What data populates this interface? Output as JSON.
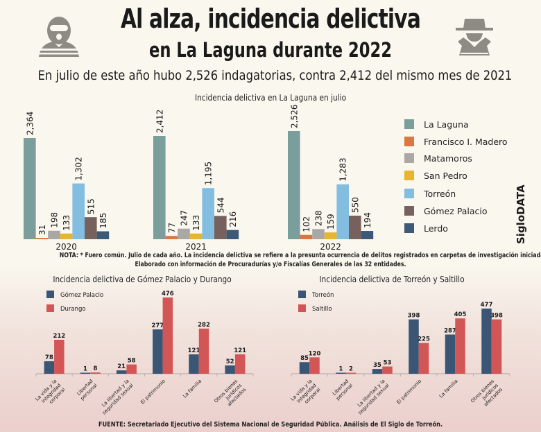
{
  "header": {
    "title_line1": "Al alza, incidencia delictiva",
    "title_line2": "en La Laguna durante 2022",
    "subtitle": "En julio de este año hubo 2,526 indagatorias, contra 2,412 del mismo mes de 2021",
    "left_icon": "masked-thief-icon",
    "right_icon": "spy-hat-icon"
  },
  "brand": "SigloDATA",
  "note_line1": "NOTA: * Fuero común. Julio de cada año. La incidencia delictiva se refiere a la presunta ocurrencia de delitos registrados en carpetas de investigación iniciadas.",
  "note_line2": "Elaborado con información de Procuradurías y/o Fiscalías Generales de las 32 entidades.",
  "source": "FUENTE: Secretariado Ejecutivo del Sistema Nacional de Seguridad Pública. Análisis de El Siglo de Torreón.",
  "colors": {
    "la_laguna": "#7a9e9b",
    "francisco_madero": "#d9783f",
    "matamoros": "#a9a8a4",
    "san_pedro": "#e8b52e",
    "torreon": "#83bde0",
    "gomez_palacio": "#76615d",
    "lerdo": "#3c5a78",
    "navy": "#3b5674",
    "red": "#d35656",
    "icon_gray": "#8c8c84"
  },
  "chart_data": [
    {
      "type": "bar",
      "title": "Incidencia delictiva en La Laguna en julio",
      "xlabel": "",
      "ylabel": "",
      "ylim": [
        0,
        2600
      ],
      "grid": false,
      "legend_position": "right",
      "categories": [
        "2020",
        "2021",
        "2022"
      ],
      "series": [
        {
          "name": "La Laguna",
          "values": [
            2364,
            2412,
            2526
          ],
          "labels": [
            "2,364",
            "2,412",
            "2,526"
          ]
        },
        {
          "name": "Francisco I. Madero",
          "values": [
            31,
            77,
            102
          ],
          "labels": [
            "31",
            "77",
            "102"
          ]
        },
        {
          "name": "Matamoros",
          "values": [
            198,
            247,
            238
          ],
          "labels": [
            "198",
            "247",
            "238"
          ]
        },
        {
          "name": "San Pedro",
          "values": [
            133,
            133,
            159
          ],
          "labels": [
            "133",
            "133",
            "159"
          ]
        },
        {
          "name": "Torreón",
          "values": [
            1302,
            1195,
            1283
          ],
          "labels": [
            "1,302",
            "1,195",
            "1,283"
          ]
        },
        {
          "name": "Gómez Palacio",
          "values": [
            515,
            544,
            550
          ],
          "labels": [
            "515",
            "544",
            "550"
          ]
        },
        {
          "name": "Lerdo",
          "values": [
            185,
            216,
            194
          ],
          "labels": [
            "185",
            "216",
            "194"
          ]
        }
      ]
    },
    {
      "type": "bar",
      "title": "Incidencia delictiva de Gómez Palacio y Durango",
      "xlabel": "",
      "ylabel": "",
      "ylim": [
        0,
        500
      ],
      "grid": false,
      "legend_position": "top-left",
      "categories": [
        "La vida y la integridad corporal",
        "Libertad personal",
        "La libertad y la seguridad sexual",
        "El patrimonio",
        "La familia",
        "Otros bienes jurídicos afectados"
      ],
      "category_lines": [
        [
          "La vida y la",
          "integridad",
          "corporal"
        ],
        [
          "Libertad",
          "personal"
        ],
        [
          "La libertad y la",
          "seguridad sexual"
        ],
        [
          "El patrimonio"
        ],
        [
          "La familia"
        ],
        [
          "Otros bienes",
          "jurídicos",
          "afectados"
        ]
      ],
      "series": [
        {
          "name": "Gómez Palacio",
          "values": [
            78,
            1,
            21,
            277,
            121,
            52
          ]
        },
        {
          "name": "Durango",
          "values": [
            212,
            8,
            58,
            476,
            282,
            121
          ]
        }
      ]
    },
    {
      "type": "bar",
      "title": "Incidencia delictiva de Torreón y Saltillo",
      "xlabel": "",
      "ylabel": "",
      "ylim": [
        0,
        500
      ],
      "grid": false,
      "legend_position": "top-left",
      "categories": [
        "La vida y la integridad corporal",
        "Libertad personal",
        "La libertad y la seguridad sexual",
        "El patrimonio",
        "La familia",
        "Otros bienes jurídicos afectados"
      ],
      "category_lines": [
        [
          "La vida y la",
          "integridad",
          "corporal"
        ],
        [
          "Libertad",
          "personal"
        ],
        [
          "La libertad y la",
          "seguridad sexual"
        ],
        [
          "El patrimonio"
        ],
        [
          "La familia"
        ],
        [
          "Otros bienes",
          "jurídicos",
          "afectados"
        ]
      ],
      "series": [
        {
          "name": "Torreón",
          "values": [
            85,
            1,
            35,
            398,
            287,
            477
          ]
        },
        {
          "name": "Saltillo",
          "values": [
            120,
            2,
            53,
            225,
            405,
            398
          ]
        }
      ]
    }
  ]
}
